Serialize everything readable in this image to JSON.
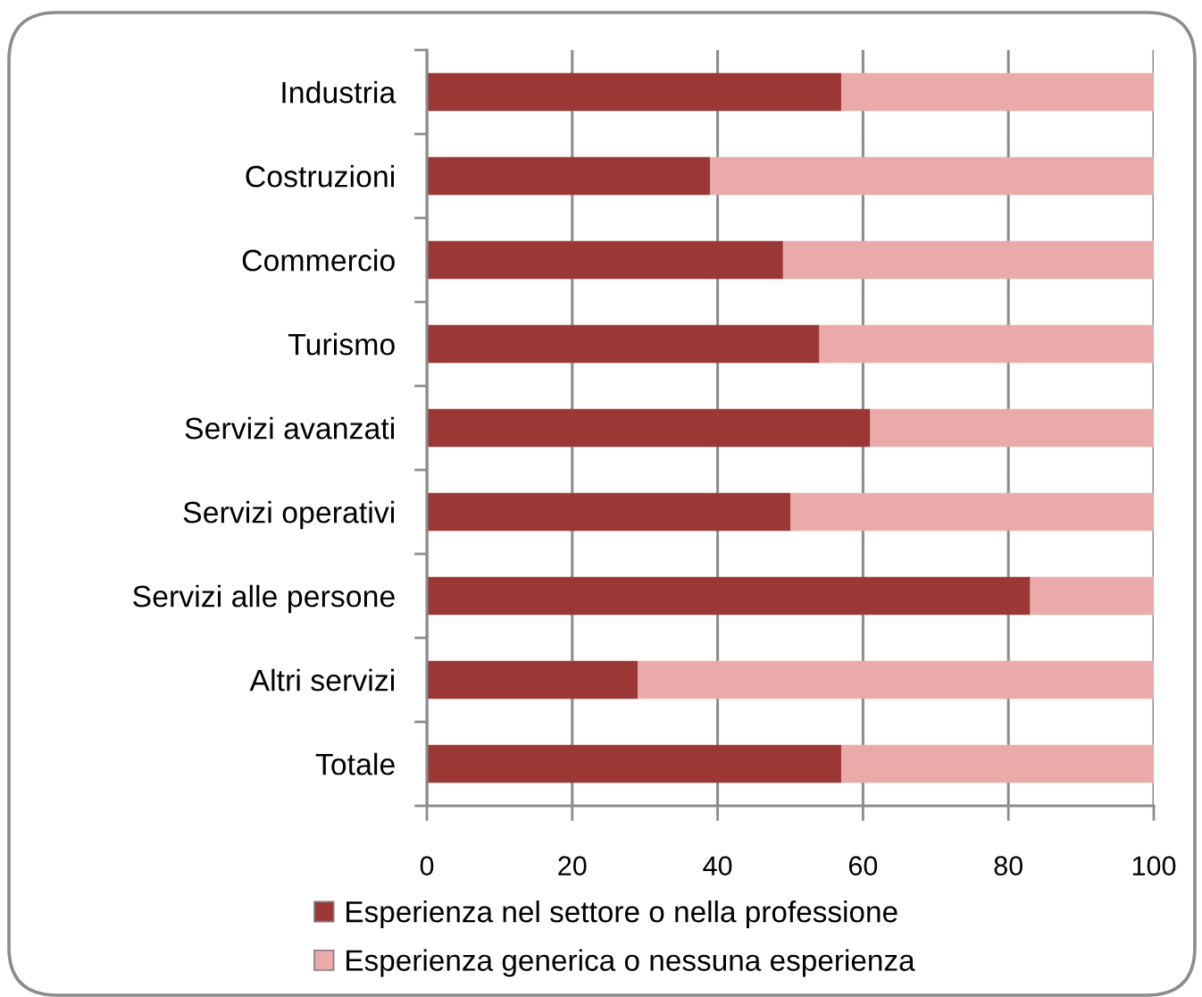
{
  "chart_data": {
    "type": "bar",
    "orientation": "horizontal",
    "stacked": true,
    "categories": [
      "Industria",
      "Costruzioni",
      "Commercio",
      "Turismo",
      "Servizi avanzati",
      "Servizi operativi",
      "Servizi alle persone",
      "Altri servizi",
      "Totale"
    ],
    "series": [
      {
        "name": "Esperienza nel settore o nella professione",
        "color": "#9b3836",
        "values": [
          57,
          39,
          49,
          54,
          61,
          50,
          83,
          29,
          57
        ]
      },
      {
        "name": "Esperienza generica o nessuna esperienza",
        "color": "#eaaaa9",
        "values": [
          43,
          61,
          51,
          46,
          39,
          50,
          17,
          71,
          43
        ]
      }
    ],
    "xlim": [
      0,
      100
    ],
    "xticks": [
      0,
      20,
      40,
      60,
      80,
      100
    ],
    "grid": "x",
    "legend": "bottom"
  }
}
